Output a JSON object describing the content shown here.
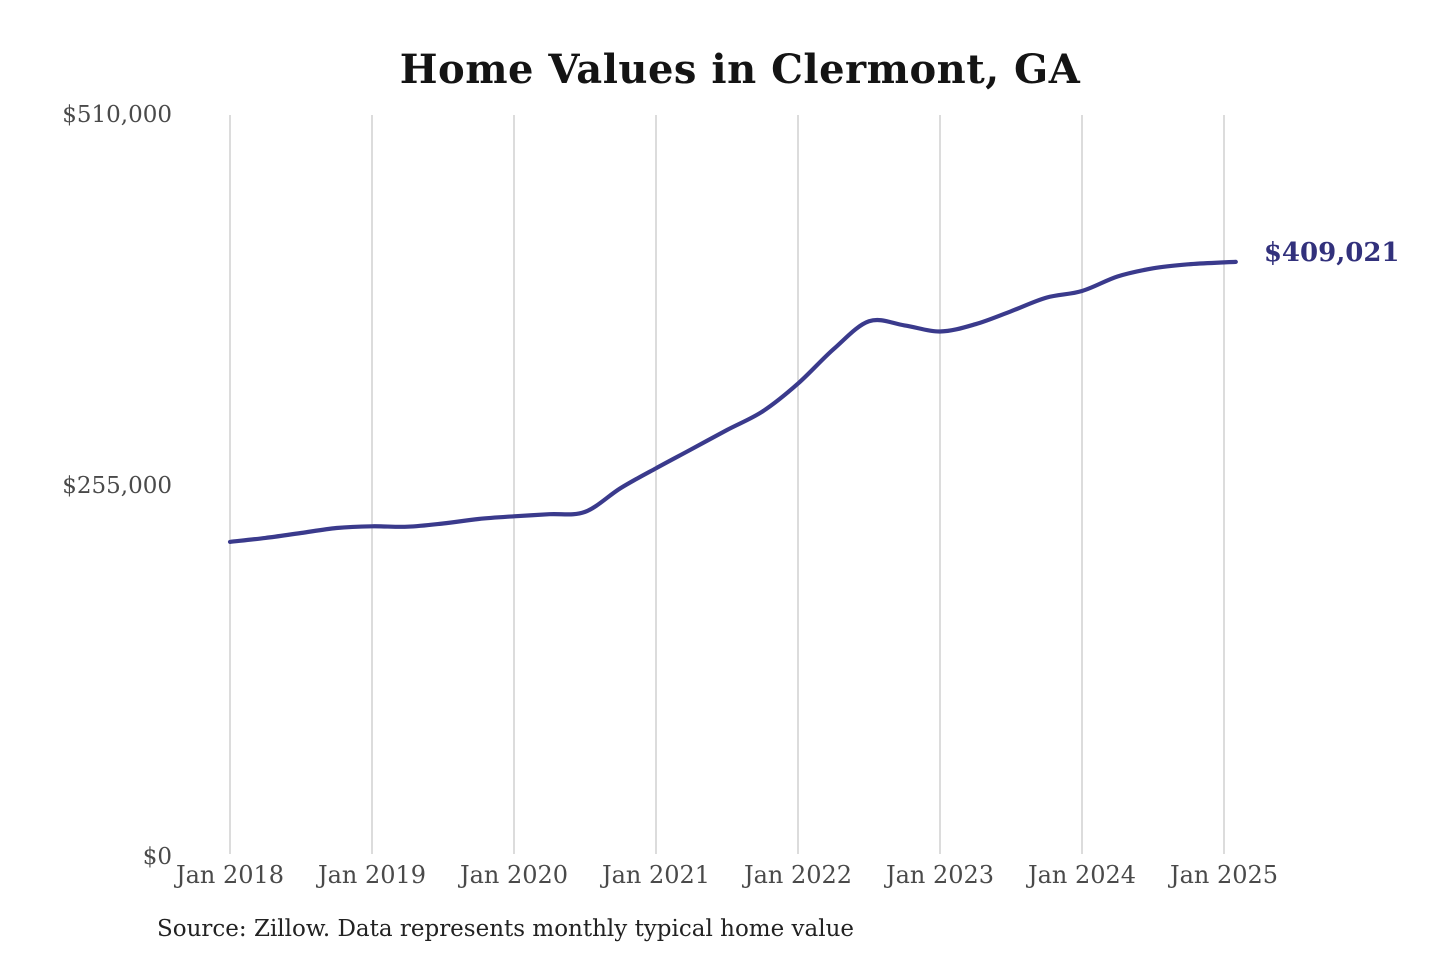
{
  "chart": {
    "title": "Home Values in Clermont, GA",
    "end_label": "$409,021",
    "source_note": "Source: Zillow. Data represents monthly typical home value",
    "colors": {
      "line": "#3a3a8c",
      "end_label": "#32317c",
      "gridline": "#c9c9c9",
      "title_text": "#141414",
      "tick_text": "#4a4a4a",
      "source_text": "#222222",
      "background": "#ffffff"
    }
  },
  "chart_data": {
    "type": "line",
    "title": "Home Values in Clermont, GA",
    "series_name": "Monthly typical home value (USD)",
    "unit": "USD",
    "ylim": [
      0,
      510000
    ],
    "grid": "vertical-only",
    "legend": "none",
    "y_ticks": [
      {
        "label": "$510,000",
        "value": 510000
      },
      {
        "label": "$255,000",
        "value": 255000
      },
      {
        "label": "$0",
        "value": 0
      }
    ],
    "x_ticks": [
      "Jan 2018",
      "Jan 2019",
      "Jan 2020",
      "Jan 2021",
      "Jan 2022",
      "Jan 2023",
      "Jan 2024",
      "Jan 2025"
    ],
    "points": [
      {
        "label": "Jan 2018",
        "m": 0,
        "value": 216600
      },
      {
        "label": "Apr 2018",
        "m": 3,
        "value": 219300
      },
      {
        "label": "Jul 2018",
        "m": 6,
        "value": 222700
      },
      {
        "label": "Oct 2018",
        "m": 9,
        "value": 226100
      },
      {
        "label": "Jan 2019",
        "m": 12,
        "value": 227300
      },
      {
        "label": "Apr 2019",
        "m": 15,
        "value": 227000
      },
      {
        "label": "Jul 2019",
        "m": 18,
        "value": 229200
      },
      {
        "label": "Oct 2019",
        "m": 21,
        "value": 232300
      },
      {
        "label": "Jan 2020",
        "m": 24,
        "value": 234200
      },
      {
        "label": "Apr 2020",
        "m": 27,
        "value": 235600
      },
      {
        "label": "Jul 2020",
        "m": 30,
        "value": 237200
      },
      {
        "label": "Oct 2020",
        "m": 33,
        "value": 253500
      },
      {
        "label": "Jan 2021",
        "m": 36,
        "value": 267200
      },
      {
        "label": "Apr 2021",
        "m": 39,
        "value": 280300
      },
      {
        "label": "Jul 2021",
        "m": 42,
        "value": 293500
      },
      {
        "label": "Oct 2021",
        "m": 45,
        "value": 306200
      },
      {
        "label": "Jan 2022",
        "m": 48,
        "value": 325400
      },
      {
        "label": "Apr 2022",
        "m": 51,
        "value": 349000
      },
      {
        "label": "Jul 2022",
        "m": 54,
        "value": 368200
      },
      {
        "label": "Oct 2022",
        "m": 57,
        "value": 365400
      },
      {
        "label": "Jan 2023",
        "m": 60,
        "value": 361200
      },
      {
        "label": "Apr 2023",
        "m": 63,
        "value": 366200
      },
      {
        "label": "Jul 2023",
        "m": 66,
        "value": 375100
      },
      {
        "label": "Oct 2023",
        "m": 69,
        "value": 384500
      },
      {
        "label": "Jan 2024",
        "m": 72,
        "value": 389000
      },
      {
        "label": "Apr 2024",
        "m": 75,
        "value": 399000
      },
      {
        "label": "Jul 2024",
        "m": 78,
        "value": 404600
      },
      {
        "label": "Oct 2024",
        "m": 81,
        "value": 407400
      },
      {
        "label": "Jan 2025",
        "m": 84,
        "value": 408700
      },
      {
        "label": "Feb 2025",
        "m": 85,
        "value": 409021
      }
    ]
  }
}
